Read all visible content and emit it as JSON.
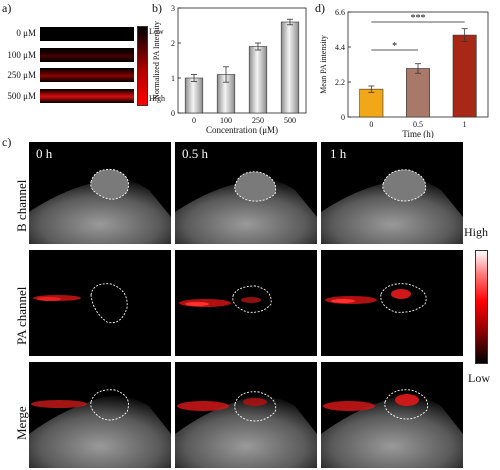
{
  "panel_a": {
    "letter": "a)",
    "rows": [
      "0 μM",
      "100 μM",
      "250 μM",
      "500 μM"
    ],
    "legend_low": "Low",
    "legend_high": "High"
  },
  "panel_b": {
    "letter": "b)"
  },
  "panel_c": {
    "letter": "c)",
    "times": [
      "0 h",
      "0.5 h",
      "1 h"
    ],
    "rows": [
      "B channel",
      "PA channel",
      "Merge"
    ],
    "scale_high": "High",
    "scale_low": "Low"
  },
  "panel_d": {
    "letter": "d)"
  },
  "chart_data": [
    {
      "type": "bar",
      "id": "b",
      "categories": [
        "0",
        "100",
        "250",
        "500"
      ],
      "values": [
        1.0,
        1.1,
        1.9,
        2.6
      ],
      "errors": [
        0.1,
        0.22,
        0.1,
        0.08
      ],
      "ylim": [
        0,
        3
      ],
      "yticks": [
        "0",
        "1",
        "2",
        "3"
      ],
      "xlabel": "Concentration (μM)",
      "ylabel": "Normalized PA Intensity",
      "bar_color": "#c8c8c8"
    },
    {
      "type": "bar",
      "id": "d",
      "categories": [
        "0",
        "0.5",
        "1"
      ],
      "values": [
        1.75,
        3.05,
        5.15
      ],
      "errors": [
        0.2,
        0.3,
        0.4
      ],
      "colors": [
        "#f0a818",
        "#a87868",
        "#a82818"
      ],
      "ylim": [
        0,
        6.6
      ],
      "yticks": [
        "0",
        "2.2",
        "4.4",
        "6.6"
      ],
      "xlabel": "Time (h)",
      "ylabel": "Mean PA intensity",
      "significance": [
        {
          "from": 0,
          "to": 1,
          "label": "*"
        },
        {
          "from": 0,
          "to": 2,
          "label": "***"
        }
      ]
    }
  ]
}
